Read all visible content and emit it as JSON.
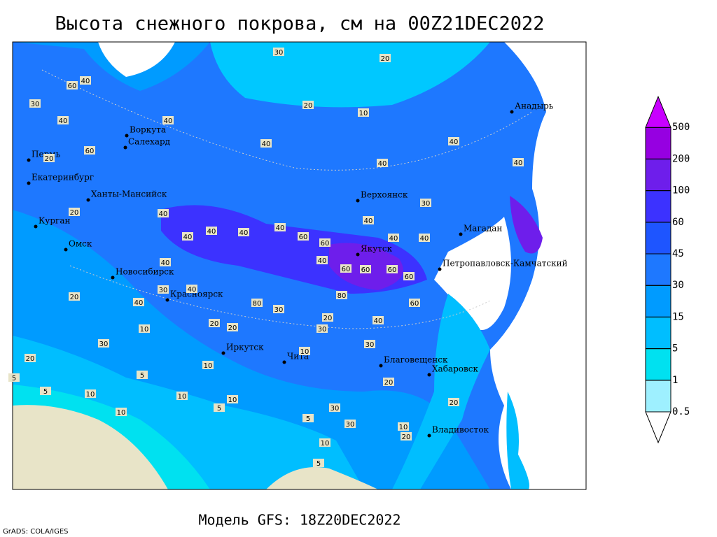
{
  "header": {
    "title": "Высота снежного покрова, см на 00Z21DEC2022"
  },
  "footer": {
    "model": "Модель GFS: 18Z20DEC2022",
    "credit": "GrADS: COLA/IGES"
  },
  "map": {
    "cities": [
      "Анадырь",
      "Воркута",
      "Салехард",
      "Пермь",
      "Екатеринбург",
      "Ханты-Мансийск",
      "Верхоянск",
      "Курган",
      "Магадан",
      "Омск",
      "Якутск",
      "Петропавловск-Камчатский",
      "Новосибирск",
      "Красноярск",
      "Иркутск",
      "Чита",
      "Благовещенск",
      "Хабаровск",
      "Владивосток"
    ],
    "contour_labels": [
      30,
      20,
      20,
      60,
      40,
      30,
      10,
      40,
      40,
      40,
      60,
      40,
      40,
      40,
      20,
      40,
      20,
      40,
      40,
      40,
      60,
      30,
      40,
      40,
      40,
      60,
      40,
      40,
      40,
      30,
      60,
      60,
      60,
      80,
      60,
      40,
      40,
      80,
      30,
      60,
      40,
      20,
      20,
      20,
      20,
      30,
      10,
      30,
      30,
      10,
      20,
      20,
      5,
      10,
      5,
      10,
      10,
      5,
      10,
      5,
      20,
      30,
      10,
      5,
      10,
      10,
      20,
      30,
      5
    ]
  },
  "legend": {
    "levels": [
      0.5,
      1,
      5,
      15,
      30,
      45,
      60,
      100,
      200,
      500
    ],
    "colors": [
      "#ffffff",
      "#9ef0ff",
      "#00e1f0",
      "#00beff",
      "#009bff",
      "#1e78ff",
      "#1e55ff",
      "#3c32ff",
      "#6e1eeb",
      "#9600e1",
      "#c800ff"
    ]
  }
}
